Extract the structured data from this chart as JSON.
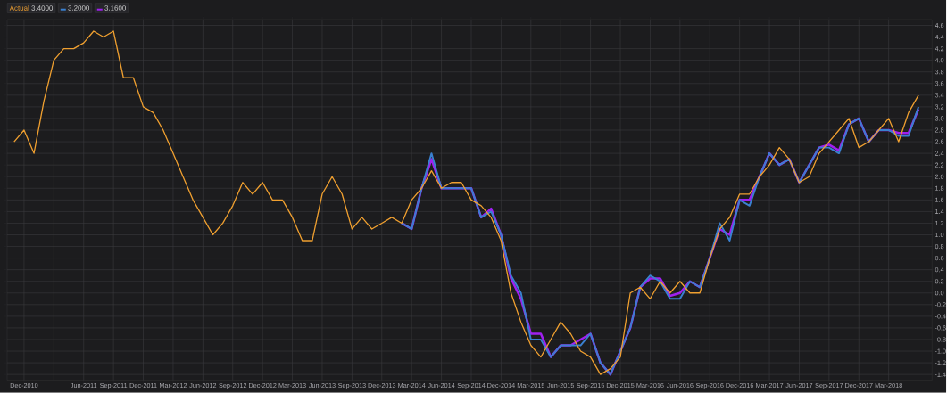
{
  "chart_data": {
    "type": "line",
    "x": [
      "2010-11",
      "2010-12",
      "2011-01",
      "2011-02",
      "2011-03",
      "2011-04",
      "2011-05",
      "2011-06",
      "2011-07",
      "2011-08",
      "2011-09",
      "2011-10",
      "2011-11",
      "2011-12",
      "2012-01",
      "2012-02",
      "2012-03",
      "2012-04",
      "2012-05",
      "2012-06",
      "2012-07",
      "2012-08",
      "2012-09",
      "2012-10",
      "2012-11",
      "2012-12",
      "2013-01",
      "2013-02",
      "2013-03",
      "2013-04",
      "2013-05",
      "2013-06",
      "2013-07",
      "2013-08",
      "2013-09",
      "2013-10",
      "2013-11",
      "2013-12",
      "2014-01",
      "2014-02",
      "2014-03",
      "2014-04",
      "2014-05",
      "2014-06",
      "2014-07",
      "2014-08",
      "2014-09",
      "2014-10",
      "2014-11",
      "2014-12",
      "2015-01",
      "2015-02",
      "2015-03",
      "2015-04",
      "2015-05",
      "2015-06",
      "2015-07",
      "2015-08",
      "2015-09",
      "2015-10",
      "2015-11",
      "2015-12",
      "2016-01",
      "2016-02",
      "2016-03",
      "2016-04",
      "2016-05",
      "2016-06",
      "2016-07",
      "2016-08",
      "2016-09",
      "2016-10",
      "2016-11",
      "2016-12",
      "2017-01",
      "2017-02",
      "2017-03",
      "2017-04",
      "2017-05",
      "2017-06",
      "2017-07",
      "2017-08",
      "2017-09",
      "2017-10",
      "2017-11",
      "2017-12",
      "2018-01",
      "2018-02",
      "2018-03",
      "2018-04",
      "2018-05",
      "2018-06"
    ],
    "series": [
      {
        "name": "Actual",
        "color": "#f0a030",
        "values": [
          2.6,
          2.8,
          2.4,
          3.3,
          4.0,
          4.2,
          4.2,
          4.3,
          4.5,
          4.4,
          4.5,
          3.7,
          3.7,
          3.2,
          3.1,
          2.8,
          2.4,
          2.0,
          1.6,
          1.3,
          1.0,
          1.2,
          1.5,
          1.9,
          1.7,
          1.9,
          1.6,
          1.6,
          1.3,
          0.9,
          0.9,
          1.7,
          2.0,
          1.7,
          1.1,
          1.3,
          1.1,
          1.2,
          1.3,
          1.2,
          1.6,
          1.8,
          2.1,
          1.8,
          1.9,
          1.9,
          1.6,
          1.5,
          1.3,
          0.9,
          0.0,
          -0.5,
          -0.9,
          -1.1,
          -0.8,
          -0.5,
          -0.7,
          -1.0,
          -1.1,
          -1.4,
          -1.3,
          -1.1,
          0.0,
          0.1,
          -0.1,
          0.2,
          0.0,
          0.2,
          0.0,
          0.0,
          0.6,
          1.1,
          1.3,
          1.7,
          1.7,
          2.0,
          2.2,
          2.5,
          2.3,
          1.9,
          2.0,
          2.4,
          2.6,
          2.8,
          3.0,
          2.5,
          2.6,
          2.8,
          3.0,
          2.6,
          3.1,
          3.4
        ]
      },
      {
        "color": "#3a80d0",
        "values": [
          null,
          null,
          null,
          null,
          null,
          null,
          null,
          null,
          null,
          null,
          null,
          null,
          null,
          null,
          null,
          null,
          null,
          null,
          null,
          null,
          null,
          null,
          null,
          null,
          null,
          null,
          null,
          null,
          null,
          null,
          null,
          null,
          null,
          null,
          null,
          null,
          null,
          null,
          null,
          1.2,
          1.1,
          1.8,
          2.4,
          1.8,
          1.8,
          1.8,
          1.8,
          1.3,
          1.4,
          1.0,
          0.3,
          0.0,
          -0.8,
          -0.8,
          -1.1,
          -0.9,
          -0.9,
          -0.9,
          -0.7,
          -1.2,
          -1.4,
          -1.0,
          -0.6,
          0.1,
          0.3,
          0.2,
          -0.1,
          -0.1,
          0.2,
          0.1,
          0.6,
          1.2,
          0.9,
          1.6,
          1.5,
          2.0,
          2.4,
          2.2,
          2.3,
          1.9,
          2.2,
          2.5,
          2.5,
          2.4,
          2.9,
          3.0,
          2.6,
          2.8,
          2.8,
          2.7,
          2.7,
          3.2
        ]
      },
      {
        "color": "#a020f0",
        "values": [
          null,
          null,
          null,
          null,
          null,
          null,
          null,
          null,
          null,
          null,
          null,
          null,
          null,
          null,
          null,
          null,
          null,
          null,
          null,
          null,
          null,
          null,
          null,
          null,
          null,
          null,
          null,
          null,
          null,
          null,
          null,
          null,
          null,
          null,
          null,
          null,
          null,
          null,
          null,
          1.2,
          1.1,
          1.8,
          2.3,
          1.8,
          1.8,
          1.8,
          1.8,
          1.3,
          1.45,
          1.0,
          0.25,
          -0.1,
          -0.7,
          -0.7,
          -1.1,
          -0.9,
          -0.9,
          -0.8,
          -0.7,
          -1.2,
          -1.4,
          -1.0,
          -0.6,
          0.1,
          0.25,
          0.25,
          -0.05,
          0.0,
          0.2,
          0.1,
          0.6,
          1.1,
          1.0,
          1.6,
          1.6,
          2.0,
          2.4,
          2.2,
          2.3,
          1.9,
          2.2,
          2.5,
          2.55,
          2.45,
          2.9,
          3.0,
          2.6,
          2.8,
          2.8,
          2.75,
          2.75,
          3.16
        ]
      }
    ],
    "xlim": [
      "2010-10-10",
      "2018-07-12"
    ],
    "xticks": [
      {
        "value": "2010-12",
        "label": "Dec-2010"
      },
      {
        "value": "2011-03",
        "label": null
      },
      {
        "value": "2011-06",
        "label": "Jun-2011"
      },
      {
        "value": "2011-09",
        "label": "Sep-2011"
      },
      {
        "value": "2011-12",
        "label": "Dec-2011"
      },
      {
        "value": "2012-03",
        "label": "Mar-2012"
      },
      {
        "value": "2012-06",
        "label": "Jun-2012"
      },
      {
        "value": "2012-09",
        "label": "Sep-2012"
      },
      {
        "value": "2012-12",
        "label": "Dec-2012"
      },
      {
        "value": "2013-03",
        "label": "Mar-2013"
      },
      {
        "value": "2013-06",
        "label": "Jun-2013"
      },
      {
        "value": "2013-09",
        "label": "Sep-2013"
      },
      {
        "value": "2013-12",
        "label": "Dec-2013"
      },
      {
        "value": "2014-03",
        "label": "Mar-2014"
      },
      {
        "value": "2014-06",
        "label": "Jun-2014"
      },
      {
        "value": "2014-09",
        "label": "Sep-2014"
      },
      {
        "value": "2014-12",
        "label": "Dec-2014"
      },
      {
        "value": "2015-03",
        "label": "Mar-2015"
      },
      {
        "value": "2015-06",
        "label": "Jun-2015"
      },
      {
        "value": "2015-09",
        "label": "Sep-2015"
      },
      {
        "value": "2015-12",
        "label": "Dec-2015"
      },
      {
        "value": "2016-03",
        "label": "Mar-2016"
      },
      {
        "value": "2016-06",
        "label": "Jun-2016"
      },
      {
        "value": "2016-09",
        "label": "Sep-2016"
      },
      {
        "value": "2016-12",
        "label": "Dec-2016"
      },
      {
        "value": "2017-03",
        "label": "Mar-2017"
      },
      {
        "value": "2017-06",
        "label": "Jun-2017"
      },
      {
        "value": "2017-09",
        "label": "Sep-2017"
      },
      {
        "value": "2017-12",
        "label": "Dec-2017"
      },
      {
        "value": "2018-03",
        "label": "Mar-2018"
      }
    ],
    "ylim": [
      -1.5,
      4.7
    ],
    "yticks": [
      -1.4,
      -1.2,
      {
        "value": -1,
        "label": "-1.0"
      },
      -0.8,
      -0.6,
      -0.4,
      -0.2,
      {
        "value": 0,
        "label": "0.0"
      },
      0.2,
      0.4,
      0.6,
      0.8,
      {
        "value": 1,
        "label": "1.0"
      },
      1.2,
      1.4,
      1.6,
      1.8,
      {
        "value": 2,
        "label": "2.0"
      },
      2.2,
      2.4,
      2.6,
      2.8,
      {
        "value": 3,
        "label": "3.0"
      },
      3.2,
      3.4,
      3.6,
      3.8,
      {
        "value": 4,
        "label": "4.0"
      },
      4.2,
      4.4,
      4.6
    ],
    "grid": true,
    "legend": "top left",
    "annotations": [
      "3.4000",
      "3.2000",
      "3.1600"
    ]
  }
}
